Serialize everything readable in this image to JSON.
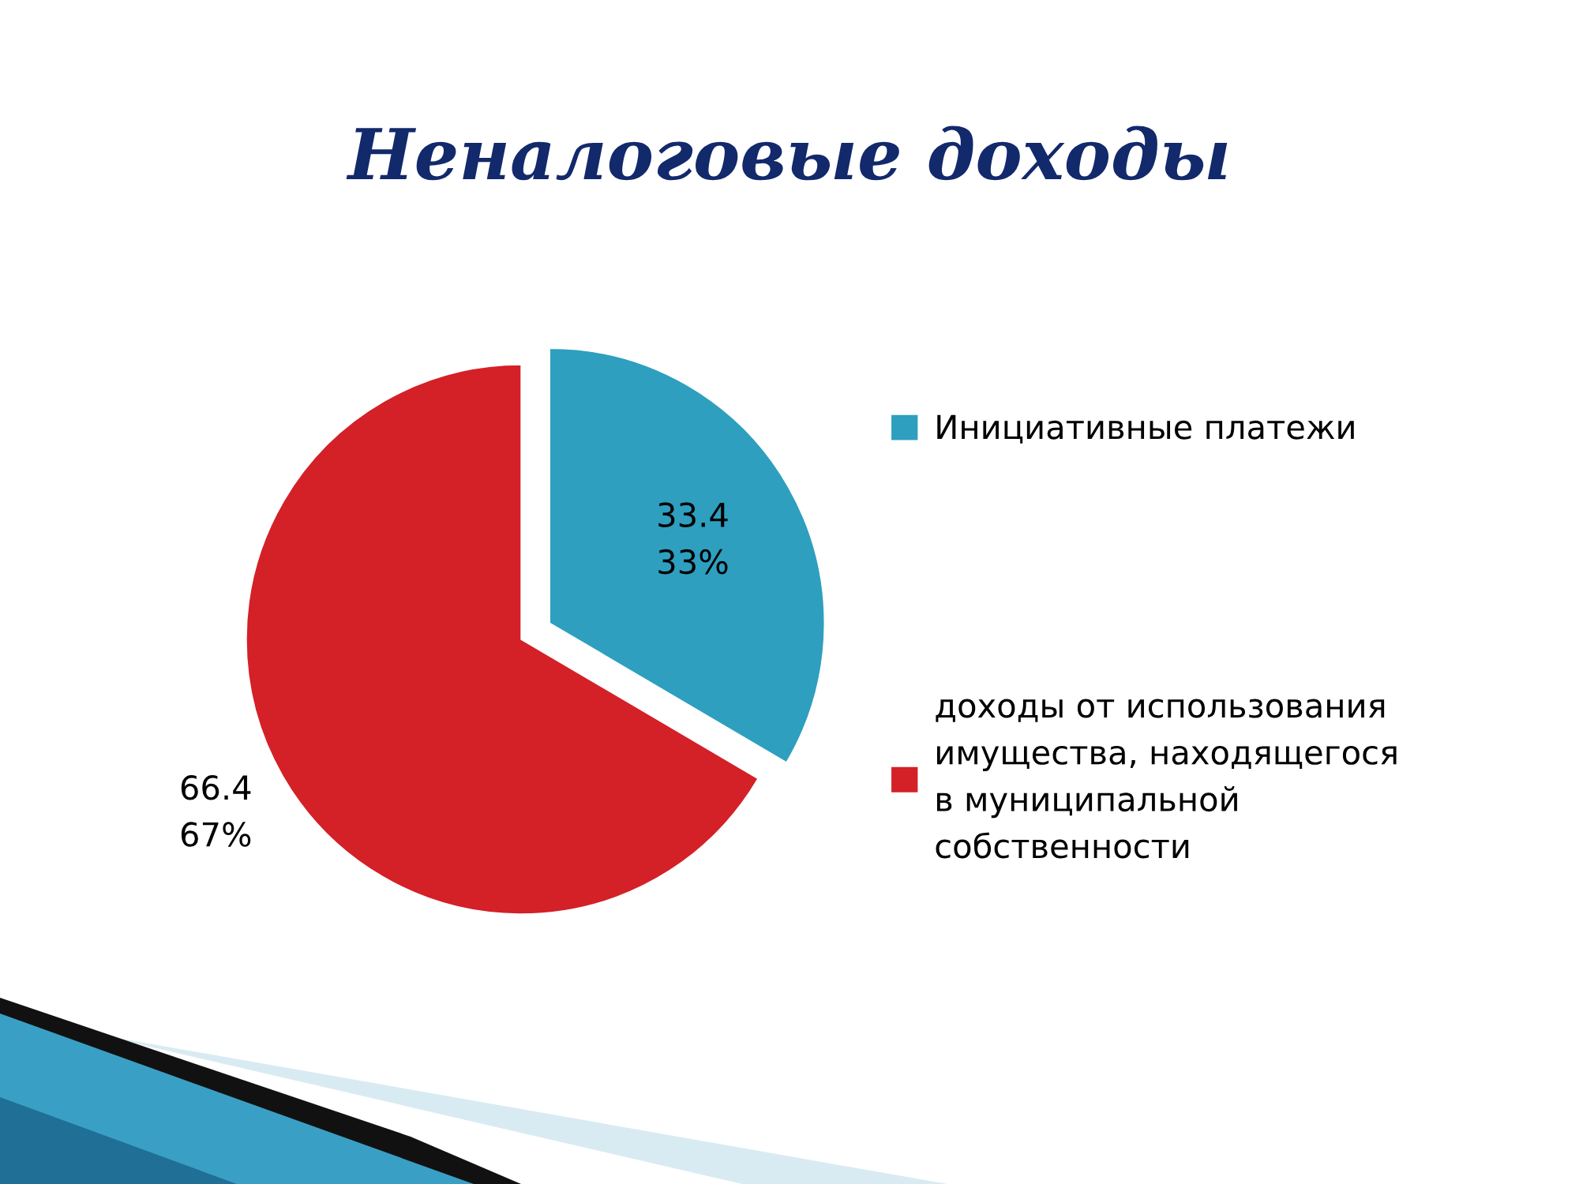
{
  "chart_data": {
    "type": "pie",
    "title": "Неналоговые доходы",
    "categories": [
      "Инициативные платежи",
      "доходы от использования\nимущества, находящегося\nв муниципальной\nсобственности"
    ],
    "values": [
      33.4,
      66.4
    ],
    "colors": [
      "#2e9fbf",
      "#d42027"
    ],
    "value_labels": [
      "33.4\n33%",
      "66.4\n67%"
    ],
    "legend": "right"
  }
}
